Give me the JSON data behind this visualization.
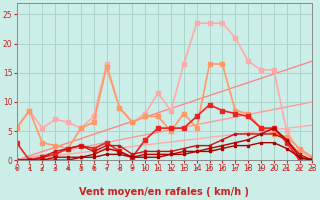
{
  "xlabel": "Vent moyen/en rafales ( km/h )",
  "xlim": [
    0,
    23
  ],
  "ylim": [
    0,
    27
  ],
  "yticks": [
    0,
    5,
    10,
    15,
    20,
    25
  ],
  "xticks": [
    0,
    1,
    2,
    3,
    4,
    5,
    6,
    7,
    8,
    9,
    10,
    11,
    12,
    13,
    14,
    15,
    16,
    17,
    18,
    19,
    20,
    21,
    22,
    23
  ],
  "bg_color": "#cceee8",
  "grid_color": "#aad4cc",
  "series": [
    {
      "x": [
        0,
        23
      ],
      "y": [
        0,
        6
      ],
      "color": "#ffaaaa",
      "lw": 1.0,
      "marker": null,
      "ms": 0
    },
    {
      "x": [
        0,
        23
      ],
      "y": [
        0,
        10
      ],
      "color": "#ff9999",
      "lw": 1.0,
      "marker": null,
      "ms": 0
    },
    {
      "x": [
        0,
        23
      ],
      "y": [
        0,
        17
      ],
      "color": "#ff8888",
      "lw": 1.0,
      "marker": null,
      "ms": 0
    },
    {
      "x": [
        0,
        1,
        2,
        3,
        4,
        5,
        6,
        7,
        8,
        9,
        10,
        11,
        12,
        13,
        14,
        15,
        16,
        17,
        18,
        19,
        20,
        21,
        22,
        23
      ],
      "y": [
        5.5,
        8.5,
        5.5,
        7.0,
        6.5,
        5.5,
        7.5,
        16.5,
        9.0,
        6.5,
        8.0,
        11.5,
        8.5,
        16.5,
        23.5,
        23.5,
        23.5,
        21.0,
        17.0,
        15.5,
        15.5,
        5.0,
        1.5,
        0.5
      ],
      "color": "#ffaaaa",
      "lw": 1.2,
      "marker": "s",
      "ms": 2.5
    },
    {
      "x": [
        0,
        1,
        2,
        3,
        4,
        5,
        6,
        7,
        8,
        9,
        10,
        11,
        12,
        13,
        14,
        15,
        16,
        17,
        18,
        19,
        20,
        21,
        22,
        23
      ],
      "y": [
        5.5,
        8.5,
        3.0,
        2.5,
        2.0,
        5.5,
        6.5,
        16.0,
        9.0,
        6.5,
        7.5,
        7.5,
        5.0,
        8.0,
        5.5,
        16.5,
        16.5,
        8.5,
        8.0,
        5.5,
        4.5,
        4.0,
        2.0,
        0.5
      ],
      "color": "#ff9966",
      "lw": 1.2,
      "marker": "s",
      "ms": 2.5
    },
    {
      "x": [
        0,
        1,
        2,
        3,
        4,
        5,
        6,
        7,
        8,
        9,
        10,
        11,
        12,
        13,
        14,
        15,
        16,
        17,
        18,
        19,
        20,
        21,
        22,
        23
      ],
      "y": [
        3.0,
        0.0,
        0.5,
        1.0,
        2.0,
        2.5,
        2.0,
        3.0,
        1.5,
        0.5,
        3.5,
        5.5,
        5.5,
        5.5,
        7.5,
        9.5,
        8.5,
        8.0,
        7.5,
        5.5,
        5.5,
        3.0,
        0.0,
        0.0
      ],
      "color": "#ee2222",
      "lw": 1.2,
      "marker": "s",
      "ms": 2.5
    },
    {
      "x": [
        0,
        1,
        2,
        3,
        4,
        5,
        6,
        7,
        8,
        9,
        10,
        11,
        12,
        13,
        14,
        15,
        16,
        17,
        18,
        19,
        20,
        21,
        22,
        23
      ],
      "y": [
        0.0,
        0.0,
        0.5,
        1.5,
        2.0,
        2.5,
        1.5,
        2.5,
        2.5,
        1.0,
        1.5,
        1.5,
        1.5,
        2.0,
        2.5,
        2.5,
        3.5,
        4.5,
        4.5,
        4.5,
        4.5,
        3.5,
        1.0,
        0.0
      ],
      "color": "#cc1111",
      "lw": 1.0,
      "marker": "s",
      "ms": 2.0
    },
    {
      "x": [
        0,
        1,
        2,
        3,
        4,
        5,
        6,
        7,
        8,
        9,
        10,
        11,
        12,
        13,
        14,
        15,
        16,
        17,
        18,
        19,
        20,
        21,
        22,
        23
      ],
      "y": [
        0.0,
        0.0,
        0.0,
        0.5,
        0.5,
        0.5,
        1.0,
        2.0,
        1.5,
        0.5,
        1.0,
        1.0,
        1.0,
        1.5,
        1.5,
        2.0,
        2.5,
        3.0,
        3.5,
        4.5,
        5.5,
        3.5,
        0.5,
        0.0
      ],
      "color": "#bb0000",
      "lw": 1.0,
      "marker": "s",
      "ms": 2.0
    },
    {
      "x": [
        0,
        1,
        2,
        3,
        4,
        5,
        6,
        7,
        8,
        9,
        10,
        11,
        12,
        13,
        14,
        15,
        16,
        17,
        18,
        19,
        20,
        21,
        22,
        23
      ],
      "y": [
        0.0,
        0.0,
        0.0,
        0.0,
        0.0,
        0.5,
        0.5,
        1.0,
        1.0,
        0.5,
        0.5,
        0.5,
        1.0,
        1.0,
        1.5,
        1.5,
        2.0,
        2.5,
        2.5,
        3.0,
        3.0,
        2.0,
        0.5,
        0.0
      ],
      "color": "#aa0000",
      "lw": 1.0,
      "marker": "s",
      "ms": 2.0
    }
  ],
  "arrow_color": "#cc2222",
  "xlabel_color": "#cc2222",
  "xlabel_fontsize": 7,
  "tick_fontsize": 5.5,
  "tick_color": "#cc2222"
}
